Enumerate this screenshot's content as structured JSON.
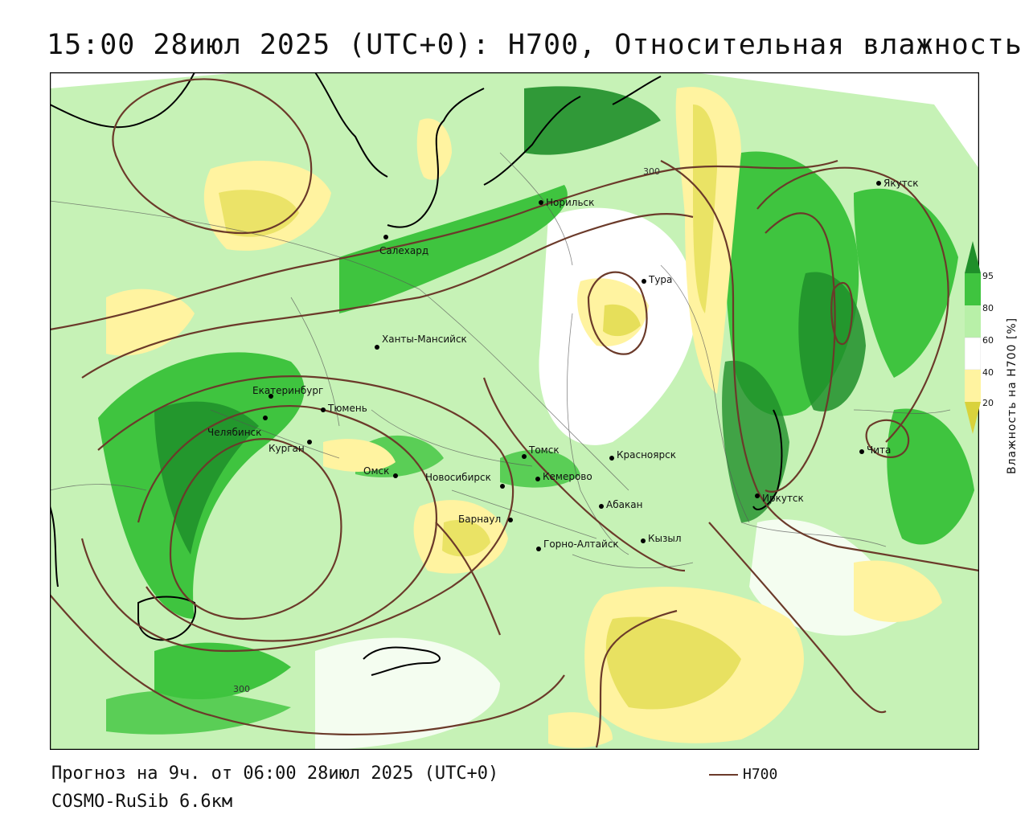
{
  "title": "15:00 28июл 2025 (UTC+0): H700, Относительная влажность",
  "footer": {
    "forecast": "Прогноз на 9ч. от 06:00 28июл 2025 (UTC+0)",
    "model": "COSMO-RuSib 6.6км"
  },
  "legend": {
    "line_label": "H700",
    "line_color": "#6b3a2a"
  },
  "colorbar": {
    "title": "Влажность на H700 [%]",
    "ticks": [
      "95",
      "80",
      "60",
      "40",
      "20"
    ],
    "colors": {
      "very_wet": "#1f8f2a",
      "wet": "#3fc43f",
      "moist": "#b8f0a8",
      "neutral": "#ffffff",
      "dry": "#fff3a0",
      "very_dry": "#d9d23c"
    }
  },
  "contour_labels": [
    "300",
    "300"
  ],
  "cities": [
    {
      "name": "Якутск"
    },
    {
      "name": "Норильск"
    },
    {
      "name": "Салехард"
    },
    {
      "name": "Тура"
    },
    {
      "name": "Ханты-Мансийск"
    },
    {
      "name": "Екатеринбург"
    },
    {
      "name": "Тюмень"
    },
    {
      "name": "Челябинск"
    },
    {
      "name": "Курган"
    },
    {
      "name": "Омск"
    },
    {
      "name": "Новосибирск"
    },
    {
      "name": "Томск"
    },
    {
      "name": "Кемерово"
    },
    {
      "name": "Красноярск"
    },
    {
      "name": "Барнаул"
    },
    {
      "name": "Абакан"
    },
    {
      "name": "Кызыл"
    },
    {
      "name": "Горно-Алтайск"
    },
    {
      "name": "Иркутск"
    },
    {
      "name": "Чита"
    }
  ]
}
